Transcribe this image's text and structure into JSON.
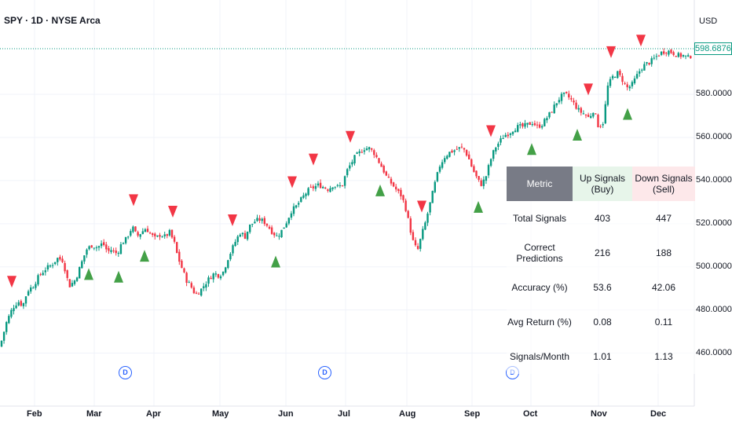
{
  "header": {
    "title": "SPY · 1D · NYSE Arca",
    "currency": "USD",
    "last_price": "598.68765"
  },
  "axis": {
    "y_labels": [
      "580.00000",
      "560.00000",
      "540.00000",
      "520.00000",
      "500.00000",
      "480.00000",
      "460.00000"
    ],
    "x_labels": [
      "Feb",
      "Mar",
      "Apr",
      "May",
      "Jun",
      "Jul",
      "Aug",
      "Sep",
      "Oct",
      "Nov",
      "Dec"
    ],
    "event_marker": "D"
  },
  "stats_table": {
    "headers": {
      "metric": "Metric",
      "up": "Up Signals (Buy)",
      "down": "Down Signals (Sell)"
    },
    "rows": [
      {
        "metric": "Total Signals",
        "up": "403",
        "down": "447"
      },
      {
        "metric": "Correct Predictions",
        "up": "216",
        "down": "188"
      },
      {
        "metric": "Accuracy (%)",
        "up": "53.6",
        "down": "42.06"
      },
      {
        "metric": "Avg Return (%)",
        "up": "0.08",
        "down": "0.11"
      },
      {
        "metric": "Signals/Month",
        "up": "1.01",
        "down": "1.13"
      }
    ]
  },
  "colors": {
    "up": "#089981",
    "down": "#f23645",
    "buy_signal": "#43a047",
    "sell_signal": "#f23645",
    "accent": "#2962ff"
  },
  "chart_data": {
    "type": "candlestick",
    "symbol": "SPY",
    "ylim": [
      455,
      610
    ],
    "path_points": [
      [
        0,
        463
      ],
      [
        8,
        474
      ],
      [
        16,
        481
      ],
      [
        23,
        484
      ],
      [
        29,
        482
      ],
      [
        35,
        489
      ],
      [
        42,
        491
      ],
      [
        50,
        496
      ],
      [
        58,
        499
      ],
      [
        66,
        501
      ],
      [
        73,
        504
      ],
      [
        80,
        503
      ],
      [
        88,
        491
      ],
      [
        96,
        494
      ],
      [
        103,
        501
      ],
      [
        110,
        508
      ],
      [
        117,
        510
      ],
      [
        124,
        509
      ],
      [
        131,
        511
      ],
      [
        137,
        507
      ],
      [
        142,
        508
      ],
      [
        149,
        506
      ],
      [
        155,
        511
      ],
      [
        161,
        513
      ],
      [
        166,
        517
      ],
      [
        170,
        518
      ],
      [
        174,
        514
      ],
      [
        180,
        516
      ],
      [
        186,
        518
      ],
      [
        192,
        515
      ],
      [
        198,
        513
      ],
      [
        204,
        515
      ],
      [
        210,
        514
      ],
      [
        216,
        516
      ],
      [
        222,
        511
      ],
      [
        226,
        505
      ],
      [
        231,
        500
      ],
      [
        237,
        494
      ],
      [
        243,
        491
      ],
      [
        249,
        487
      ],
      [
        255,
        489
      ],
      [
        261,
        492
      ],
      [
        267,
        495
      ],
      [
        273,
        497
      ],
      [
        279,
        496
      ],
      [
        285,
        498
      ],
      [
        289,
        503
      ],
      [
        294,
        507
      ],
      [
        300,
        512
      ],
      [
        306,
        516
      ],
      [
        312,
        514
      ],
      [
        318,
        519
      ],
      [
        324,
        521
      ],
      [
        330,
        522
      ],
      [
        336,
        521
      ],
      [
        341,
        519
      ],
      [
        347,
        516
      ],
      [
        353,
        514
      ],
      [
        359,
        517
      ],
      [
        365,
        521
      ],
      [
        371,
        526
      ],
      [
        377,
        528
      ],
      [
        383,
        531
      ],
      [
        389,
        534
      ],
      [
        394,
        536
      ],
      [
        400,
        537
      ],
      [
        406,
        538
      ],
      [
        412,
        537
      ],
      [
        418,
        536
      ],
      [
        424,
        538
      ],
      [
        430,
        537
      ],
      [
        436,
        538
      ],
      [
        441,
        544
      ],
      [
        447,
        548
      ],
      [
        452,
        551
      ],
      [
        458,
        553
      ],
      [
        464,
        555
      ],
      [
        470,
        555
      ],
      [
        476,
        553
      ],
      [
        482,
        549
      ],
      [
        488,
        545
      ],
      [
        493,
        541
      ],
      [
        500,
        538
      ],
      [
        506,
        535
      ],
      [
        511,
        533
      ],
      [
        516,
        528
      ],
      [
        522,
        518
      ],
      [
        527,
        510
      ],
      [
        532,
        508
      ],
      [
        537,
        515
      ],
      [
        542,
        521
      ],
      [
        548,
        530
      ],
      [
        554,
        539
      ],
      [
        560,
        547
      ],
      [
        566,
        551
      ],
      [
        572,
        553
      ],
      [
        578,
        554
      ],
      [
        584,
        555
      ],
      [
        590,
        555
      ],
      [
        596,
        551
      ],
      [
        601,
        546
      ],
      [
        606,
        542
      ],
      [
        612,
        538
      ],
      [
        618,
        541
      ],
      [
        624,
        549
      ],
      [
        630,
        555
      ],
      [
        636,
        558
      ],
      [
        642,
        561
      ],
      [
        648,
        562
      ],
      [
        654,
        564
      ],
      [
        660,
        565
      ],
      [
        666,
        565
      ],
      [
        672,
        566
      ],
      [
        678,
        567
      ],
      [
        684,
        565
      ],
      [
        690,
        566
      ],
      [
        696,
        569
      ],
      [
        702,
        572
      ],
      [
        708,
        576
      ],
      [
        714,
        579
      ],
      [
        720,
        580
      ],
      [
        726,
        578
      ],
      [
        732,
        575
      ],
      [
        738,
        572
      ],
      [
        744,
        571
      ],
      [
        750,
        569
      ],
      [
        756,
        573
      ],
      [
        762,
        565
      ],
      [
        768,
        567
      ],
      [
        774,
        584
      ],
      [
        780,
        588
      ],
      [
        786,
        590
      ],
      [
        792,
        587
      ],
      [
        798,
        583
      ],
      [
        804,
        584
      ],
      [
        810,
        588
      ],
      [
        816,
        592
      ],
      [
        822,
        594
      ],
      [
        828,
        595
      ],
      [
        834,
        597
      ],
      [
        840,
        599
      ],
      [
        846,
        600
      ],
      [
        852,
        600
      ],
      [
        858,
        599
      ],
      [
        864,
        598
      ],
      [
        870,
        598
      ],
      [
        876,
        597
      ],
      [
        880,
        598
      ]
    ],
    "buy_signal_x": [
      113,
      151,
      184,
      351,
      484,
      609,
      677,
      735,
      799
    ],
    "sell_signal_x": [
      15,
      170,
      220,
      296,
      372,
      399,
      446,
      537,
      625,
      749,
      778,
      816
    ],
    "event_marker_x": [
      159,
      413,
      652
    ],
    "last_price": 598.68765
  }
}
